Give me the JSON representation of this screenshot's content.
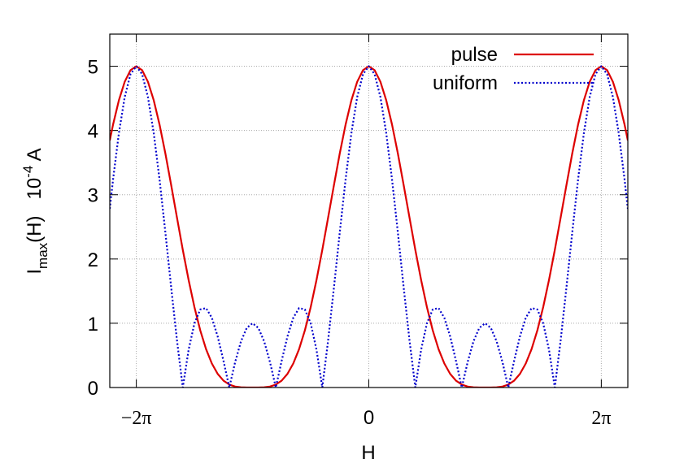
{
  "chart_data": {
    "type": "line",
    "x_label": "H",
    "y_label": {
      "main": "I",
      "sub": "max",
      "middle": "(H)   10",
      "sup": "-4",
      "unit": " A"
    },
    "x": [
      -7,
      -6.912,
      -6.754,
      -6.597,
      -6.44,
      -6.283,
      -6.126,
      -5.969,
      -5.812,
      -5.655,
      -5.498,
      -5.341,
      -5.184,
      -5.027,
      -4.869,
      -4.712,
      -4.555,
      -4.398,
      -4.241,
      -4.084,
      -3.927,
      -3.77,
      -3.613,
      -3.456,
      -3.299,
      -3.142,
      -2.985,
      -2.827,
      -2.67,
      -2.513,
      -2.356,
      -2.199,
      -2.042,
      -1.885,
      -1.728,
      -1.571,
      -1.414,
      -1.257,
      -1.1,
      -0.942,
      -0.785,
      -0.628,
      -0.471,
      -0.314,
      -0.157,
      0,
      0.157,
      0.314,
      0.471,
      0.628,
      0.785,
      0.942,
      1.1,
      1.257,
      1.414,
      1.571,
      1.728,
      1.885,
      2.042,
      2.199,
      2.356,
      2.513,
      2.67,
      2.827,
      2.985,
      3.142,
      3.299,
      3.456,
      3.613,
      3.77,
      3.927,
      4.084,
      4.241,
      4.398,
      4.555,
      4.712,
      4.869,
      5.027,
      5.184,
      5.341,
      5.498,
      5.655,
      5.812,
      5.969,
      6.126,
      6.283,
      6.44,
      6.597,
      6.754,
      6.912,
      7
    ],
    "series": [
      {
        "name": "pulse",
        "color": "#dd0000",
        "style": "solid",
        "values": [
          3.845,
          4.091,
          4.47,
          4.758,
          4.939,
          5,
          4.939,
          4.758,
          4.47,
          4.091,
          3.643,
          3.151,
          2.643,
          2.142,
          1.672,
          1.25,
          0.889,
          0.597,
          0.373,
          0.212,
          0.107,
          0.046,
          0.015,
          0.003,
          0,
          0,
          0,
          0.003,
          0.015,
          0.046,
          0.107,
          0.212,
          0.373,
          0.597,
          0.889,
          1.25,
          1.672,
          2.142,
          2.643,
          3.151,
          3.643,
          4.091,
          4.47,
          4.758,
          4.939,
          5,
          4.939,
          4.758,
          4.47,
          4.091,
          3.643,
          3.151,
          2.643,
          2.142,
          1.672,
          1.25,
          0.889,
          0.597,
          0.373,
          0.212,
          0.107,
          0.046,
          0.015,
          0.003,
          0,
          0,
          0,
          0.003,
          0.015,
          0.046,
          0.107,
          0.212,
          0.373,
          0.597,
          0.889,
          1.25,
          1.672,
          2.142,
          2.643,
          3.151,
          3.643,
          4.091,
          4.47,
          4.758,
          4.939,
          5,
          4.939,
          4.758,
          4.47,
          4.091,
          3.845
        ]
      },
      {
        "name": "uniform",
        "color": "#0000cc",
        "style": "dotted",
        "values": [
          2.781,
          3.236,
          3.958,
          4.52,
          4.877,
          5,
          4.877,
          4.52,
          3.958,
          3.236,
          2.414,
          1.558,
          0.732,
          0,
          0.589,
          1,
          1.215,
          1.236,
          1.084,
          0.794,
          0.414,
          0,
          0.394,
          0.716,
          0.927,
          1,
          0.927,
          0.716,
          0.394,
          0,
          0.414,
          0.794,
          1.084,
          1.236,
          1.215,
          1,
          0.589,
          0,
          0.732,
          1.558,
          2.414,
          3.236,
          3.958,
          4.52,
          4.877,
          5,
          4.877,
          4.52,
          3.958,
          3.236,
          2.414,
          1.558,
          0.732,
          0,
          0.589,
          1,
          1.215,
          1.236,
          1.084,
          0.794,
          0.414,
          0,
          0.394,
          0.716,
          0.927,
          1,
          0.927,
          0.716,
          0.394,
          0,
          0.414,
          0.794,
          1.084,
          1.236,
          1.215,
          1,
          0.589,
          0,
          0.732,
          1.558,
          2.414,
          3.236,
          3.958,
          4.52,
          4.877,
          5,
          4.877,
          4.52,
          3.958,
          3.236,
          2.781
        ]
      }
    ],
    "xlim": [
      -7,
      7
    ],
    "ylim": [
      0,
      5.5
    ],
    "xticks": [
      {
        "value": -6.283,
        "label": "−2π"
      },
      0,
      {
        "value": 6.283,
        "label": "2π"
      }
    ],
    "yticks": [
      0,
      1,
      2,
      3,
      4,
      5
    ],
    "grid": true,
    "legend": "top-right"
  }
}
